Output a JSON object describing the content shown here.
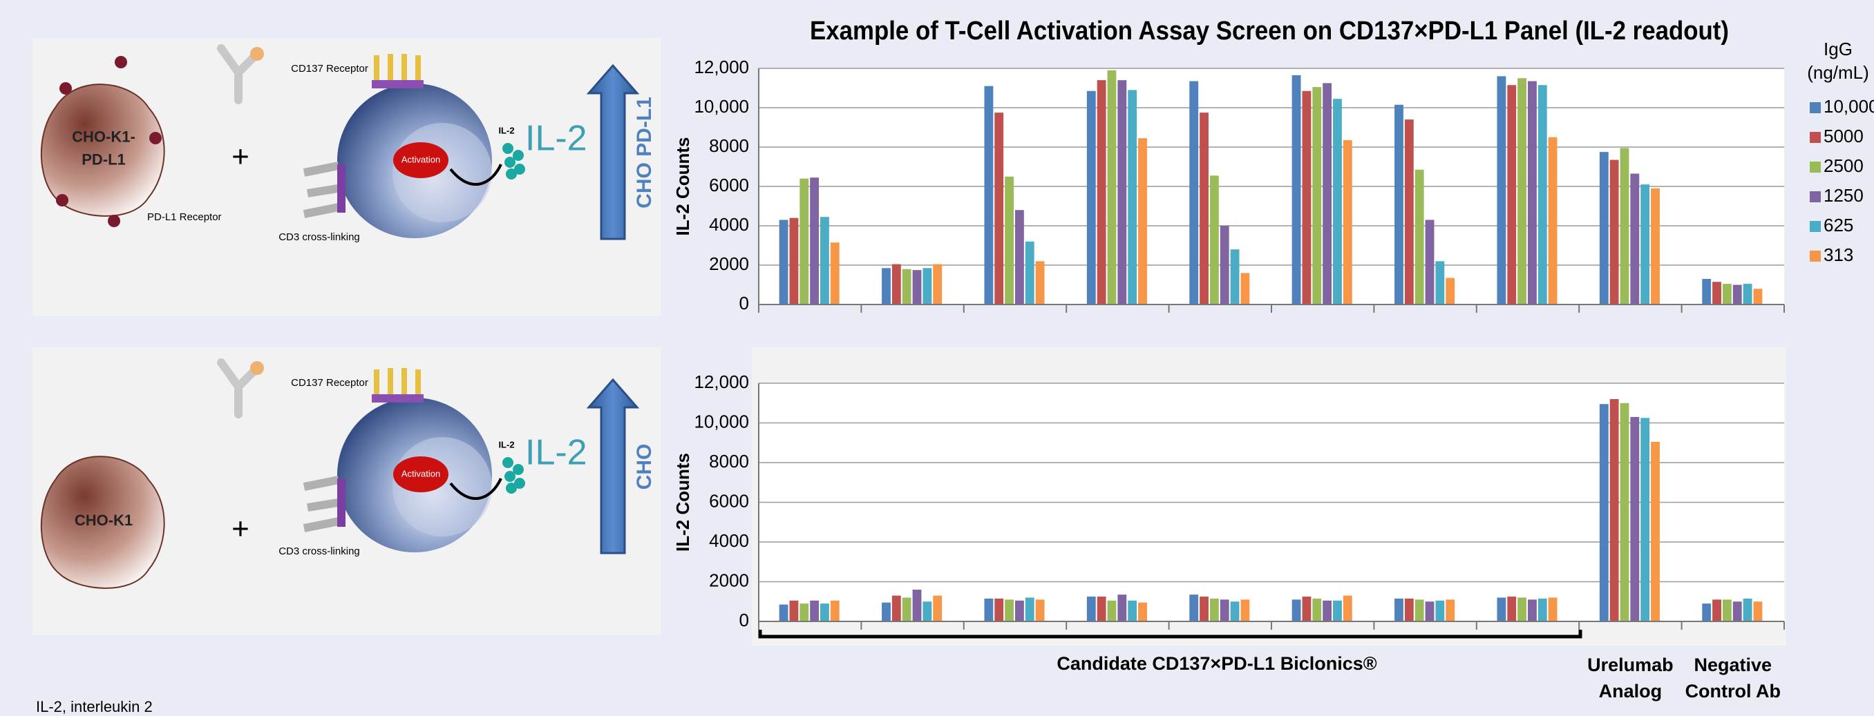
{
  "diagrams": [
    {
      "cell_label": [
        "CHO-K1-",
        "PD-L1"
      ],
      "receptor_label": "PD-L1 Receptor",
      "plus": "+",
      "cd137_label": "CD137 Receptor",
      "activation": "Activation",
      "il2_small": "IL-2",
      "il2_large": "IL-2",
      "cd3_label": "CD3 cross-linking",
      "arrow_label": "CHO PD-L1"
    },
    {
      "cell_label": [
        "CHO-K1"
      ],
      "plus": "+",
      "cd137_label": "CD137 Receptor",
      "activation": "Activation",
      "il2_small": "IL-2",
      "il2_large": "IL-2",
      "cd3_label": "CD3 cross-linking",
      "arrow_label": "CHO"
    }
  ],
  "chart_data": [
    {
      "type": "bar",
      "title": "Example of T-Cell Activation Assay Screen on CD137×PD-L1 Panel (IL-2 readout)",
      "y_label": "IL-2 Counts",
      "ylim": [
        0,
        12000
      ],
      "yticks": [
        0,
        2000,
        4000,
        6000,
        8000,
        {
          "value": 10000,
          "label": "10,000"
        },
        {
          "value": 12000,
          "label": "12,000"
        }
      ],
      "grid": true,
      "legend": "right",
      "legend_title": [
        "IgG",
        "(ng/mL)"
      ],
      "categories": [
        null,
        null,
        null,
        null,
        null,
        null,
        null,
        null,
        null,
        null
      ],
      "series": [
        {
          "name": "10,000",
          "color": "#4f81bd",
          "values": [
            4300,
            1850,
            11100,
            10850,
            11350,
            11650,
            10150,
            11600,
            7750,
            1300
          ]
        },
        {
          "name": "5000",
          "color": "#c0504d",
          "values": [
            4400,
            2050,
            9750,
            11400,
            9750,
            10850,
            9400,
            11150,
            7350,
            1150
          ]
        },
        {
          "name": "2500",
          "color": "#9bbb59",
          "values": [
            6400,
            1800,
            6500,
            11900,
            6550,
            11050,
            6850,
            11500,
            7950,
            1050
          ]
        },
        {
          "name": "1250",
          "color": "#8064a2",
          "values": [
            6450,
            1750,
            4800,
            11400,
            4000,
            11250,
            4300,
            11350,
            6650,
            1000
          ]
        },
        {
          "name": "625",
          "color": "#4bacc6",
          "values": [
            4450,
            1850,
            3200,
            10900,
            2800,
            10450,
            2200,
            11150,
            6100,
            1050
          ]
        },
        {
          "name": "313",
          "color": "#f79646",
          "values": [
            3150,
            2050,
            2200,
            8450,
            1600,
            8350,
            1350,
            8500,
            5900,
            800
          ]
        }
      ]
    },
    {
      "type": "bar",
      "y_label": "IL-2 Counts",
      "ylim": [
        0,
        12000
      ],
      "yticks": [
        0,
        2000,
        4000,
        6000,
        8000,
        {
          "value": 10000,
          "label": "10,000"
        },
        {
          "value": 12000,
          "label": "12,000"
        }
      ],
      "grid": true,
      "categories": [
        null,
        null,
        null,
        null,
        null,
        null,
        null,
        null,
        "Urelumab Analog",
        "Negative Control Ab"
      ],
      "annotations": [
        "Candidate CD137×PD-L1 Biclonics®"
      ],
      "series": [
        {
          "color": "#4f81bd",
          "values": [
            850,
            950,
            1150,
            1250,
            1350,
            1100,
            1150,
            1200,
            10950,
            900
          ]
        },
        {
          "color": "#c0504d",
          "values": [
            1050,
            1300,
            1150,
            1250,
            1250,
            1250,
            1150,
            1250,
            11200,
            1100
          ]
        },
        {
          "color": "#9bbb59",
          "values": [
            900,
            1200,
            1100,
            1050,
            1150,
            1150,
            1100,
            1200,
            11000,
            1100
          ]
        },
        {
          "color": "#8064a2",
          "values": [
            1050,
            1600,
            1050,
            1350,
            1100,
            1050,
            1000,
            1100,
            10300,
            1000
          ]
        },
        {
          "color": "#4bacc6",
          "values": [
            900,
            1000,
            1200,
            1050,
            1000,
            1050,
            1050,
            1150,
            10250,
            1150
          ]
        },
        {
          "color": "#f79646",
          "values": [
            1050,
            1300,
            1100,
            950,
            1100,
            1300,
            1100,
            1200,
            9050,
            1000
          ]
        }
      ]
    }
  ],
  "footnote": "IL-2, interleukin 2"
}
